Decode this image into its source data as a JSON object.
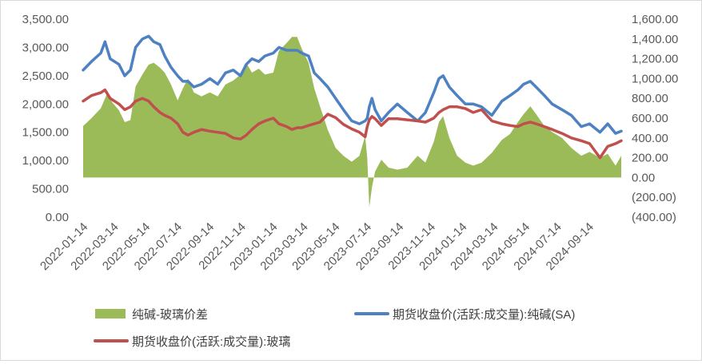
{
  "chart_data": {
    "type": "line",
    "title": "",
    "x_type": "date",
    "x_range": [
      "2022-01-04",
      "2024-11-05"
    ],
    "x_tick_labels": [
      "2022-01-14",
      "2022-03-14",
      "2022-05-14",
      "2022-07-14",
      "2022-09-14",
      "2022-11-14",
      "2023-01-14",
      "2023-03-14",
      "2023-05-14",
      "2023-07-14",
      "2023-09-14",
      "2023-11-14",
      "2024-01-14",
      "2024-03-14",
      "2024-05-14",
      "2024-07-14",
      "2024-09-14"
    ],
    "y_left": {
      "range": [
        0,
        3500
      ],
      "tick_values": [
        0,
        500,
        1000,
        1500,
        2000,
        2500,
        3000,
        3500
      ],
      "tick_labels": [
        "0.00",
        "500.00",
        "1,000.00",
        "1,500.00",
        "2,000.00",
        "2,500.00",
        "3,000.00",
        "3,500.00"
      ]
    },
    "y_right": {
      "range": [
        -400,
        1600
      ],
      "tick_values": [
        -400,
        -200,
        0,
        200,
        400,
        600,
        800,
        1000,
        1200,
        1400,
        1600
      ],
      "tick_labels": [
        "(400.00)",
        "(200.00)",
        "0.00",
        "200.00",
        "400.00",
        "600.00",
        "800.00",
        "1,000.00",
        "1,200.00",
        "1,400.00",
        "1,600.00"
      ]
    },
    "grid": false,
    "legend_position": "bottom",
    "series": [
      {
        "name": "纯碱-玻璃价差",
        "type": "area",
        "axis": "right",
        "color": "#9bbb59",
        "points": [
          [
            "2022-01-04",
            520
          ],
          [
            "2022-01-20",
            600
          ],
          [
            "2022-02-07",
            700
          ],
          [
            "2022-02-20",
            860
          ],
          [
            "2022-03-01",
            760
          ],
          [
            "2022-03-14",
            680
          ],
          [
            "2022-03-25",
            560
          ],
          [
            "2022-04-05",
            580
          ],
          [
            "2022-04-15",
            920
          ],
          [
            "2022-04-28",
            1040
          ],
          [
            "2022-05-10",
            1140
          ],
          [
            "2022-05-20",
            1160
          ],
          [
            "2022-06-01",
            1110
          ],
          [
            "2022-06-10",
            1060
          ],
          [
            "2022-06-22",
            940
          ],
          [
            "2022-07-05",
            780
          ],
          [
            "2022-07-15",
            900
          ],
          [
            "2022-07-25",
            1000
          ],
          [
            "2022-08-05",
            860
          ],
          [
            "2022-08-20",
            820
          ],
          [
            "2022-09-05",
            860
          ],
          [
            "2022-09-20",
            820
          ],
          [
            "2022-10-05",
            940
          ],
          [
            "2022-10-20",
            980
          ],
          [
            "2022-11-03",
            1040
          ],
          [
            "2022-11-14",
            1160
          ],
          [
            "2022-11-25",
            1060
          ],
          [
            "2022-12-08",
            1100
          ],
          [
            "2022-12-20",
            1040
          ],
          [
            "2023-01-05",
            1060
          ],
          [
            "2023-01-16",
            1280
          ],
          [
            "2023-01-31",
            1360
          ],
          [
            "2023-02-10",
            1420
          ],
          [
            "2023-02-20",
            1420
          ],
          [
            "2023-03-01",
            1300
          ],
          [
            "2023-03-14",
            1160
          ],
          [
            "2023-03-25",
            900
          ],
          [
            "2023-04-05",
            720
          ],
          [
            "2023-04-20",
            480
          ],
          [
            "2023-05-05",
            300
          ],
          [
            "2023-05-20",
            220
          ],
          [
            "2023-06-05",
            160
          ],
          [
            "2023-06-20",
            220
          ],
          [
            "2023-07-01",
            420
          ],
          [
            "2023-07-05",
            200
          ],
          [
            "2023-07-09",
            -300
          ],
          [
            "2023-07-14",
            -100
          ],
          [
            "2023-07-20",
            60
          ],
          [
            "2023-08-01",
            180
          ],
          [
            "2023-08-15",
            100
          ],
          [
            "2023-09-01",
            80
          ],
          [
            "2023-09-20",
            100
          ],
          [
            "2023-10-10",
            220
          ],
          [
            "2023-10-25",
            150
          ],
          [
            "2023-11-10",
            360
          ],
          [
            "2023-11-20",
            560
          ],
          [
            "2023-11-28",
            620
          ],
          [
            "2023-12-10",
            400
          ],
          [
            "2023-12-25",
            220
          ],
          [
            "2024-01-10",
            150
          ],
          [
            "2024-01-25",
            120
          ],
          [
            "2024-02-10",
            150
          ],
          [
            "2024-03-01",
            250
          ],
          [
            "2024-03-20",
            380
          ],
          [
            "2024-04-05",
            440
          ],
          [
            "2024-04-20",
            560
          ],
          [
            "2024-05-01",
            640
          ],
          [
            "2024-05-14",
            720
          ],
          [
            "2024-05-25",
            640
          ],
          [
            "2024-06-10",
            520
          ],
          [
            "2024-06-25",
            460
          ],
          [
            "2024-07-14",
            400
          ],
          [
            "2024-08-01",
            300
          ],
          [
            "2024-08-20",
            220
          ],
          [
            "2024-09-05",
            260
          ],
          [
            "2024-09-25",
            200
          ],
          [
            "2024-10-10",
            240
          ],
          [
            "2024-10-25",
            120
          ],
          [
            "2024-11-05",
            220
          ]
        ]
      },
      {
        "name": "期货收盘价(活跃:成交量):纯碱(SA)",
        "type": "line",
        "axis": "left",
        "color": "#4e81c1",
        "points": [
          [
            "2022-01-04",
            2600
          ],
          [
            "2022-01-20",
            2750
          ],
          [
            "2022-02-07",
            2900
          ],
          [
            "2022-02-15",
            3100
          ],
          [
            "2022-02-25",
            2800
          ],
          [
            "2022-03-14",
            2700
          ],
          [
            "2022-03-25",
            2500
          ],
          [
            "2022-04-05",
            2600
          ],
          [
            "2022-04-15",
            3000
          ],
          [
            "2022-04-28",
            3150
          ],
          [
            "2022-05-10",
            3200
          ],
          [
            "2022-05-20",
            3100
          ],
          [
            "2022-06-01",
            3050
          ],
          [
            "2022-06-10",
            2850
          ],
          [
            "2022-06-22",
            2650
          ],
          [
            "2022-07-05",
            2500
          ],
          [
            "2022-07-15",
            2400
          ],
          [
            "2022-07-25",
            2400
          ],
          [
            "2022-08-05",
            2300
          ],
          [
            "2022-08-20",
            2350
          ],
          [
            "2022-09-05",
            2450
          ],
          [
            "2022-09-20",
            2350
          ],
          [
            "2022-10-05",
            2550
          ],
          [
            "2022-10-20",
            2600
          ],
          [
            "2022-11-03",
            2500
          ],
          [
            "2022-11-14",
            2700
          ],
          [
            "2022-11-25",
            2800
          ],
          [
            "2022-12-08",
            2750
          ],
          [
            "2022-12-20",
            2850
          ],
          [
            "2023-01-05",
            2900
          ],
          [
            "2023-01-16",
            3000
          ],
          [
            "2023-01-31",
            2950
          ],
          [
            "2023-02-10",
            2950
          ],
          [
            "2023-02-20",
            2950
          ],
          [
            "2023-03-01",
            2900
          ],
          [
            "2023-03-14",
            2850
          ],
          [
            "2023-03-25",
            2550
          ],
          [
            "2023-04-05",
            2450
          ],
          [
            "2023-04-20",
            2300
          ],
          [
            "2023-05-05",
            2100
          ],
          [
            "2023-05-20",
            1900
          ],
          [
            "2023-06-05",
            1700
          ],
          [
            "2023-06-20",
            1650
          ],
          [
            "2023-07-01",
            1700
          ],
          [
            "2023-07-05",
            1750
          ],
          [
            "2023-07-09",
            1950
          ],
          [
            "2023-07-14",
            2100
          ],
          [
            "2023-07-20",
            1900
          ],
          [
            "2023-08-01",
            1700
          ],
          [
            "2023-08-15",
            1850
          ],
          [
            "2023-09-01",
            2000
          ],
          [
            "2023-09-20",
            1850
          ],
          [
            "2023-10-10",
            1700
          ],
          [
            "2023-10-25",
            1850
          ],
          [
            "2023-11-10",
            2200
          ],
          [
            "2023-11-20",
            2450
          ],
          [
            "2023-11-28",
            2500
          ],
          [
            "2023-12-10",
            2300
          ],
          [
            "2023-12-25",
            2150
          ],
          [
            "2024-01-10",
            2000
          ],
          [
            "2024-01-25",
            2000
          ],
          [
            "2024-02-10",
            1950
          ],
          [
            "2024-03-01",
            1800
          ],
          [
            "2024-03-20",
            2050
          ],
          [
            "2024-04-05",
            2150
          ],
          [
            "2024-04-20",
            2250
          ],
          [
            "2024-05-01",
            2350
          ],
          [
            "2024-05-14",
            2400
          ],
          [
            "2024-05-25",
            2300
          ],
          [
            "2024-06-10",
            2150
          ],
          [
            "2024-06-25",
            2000
          ],
          [
            "2024-07-14",
            1900
          ],
          [
            "2024-08-01",
            1800
          ],
          [
            "2024-08-20",
            1600
          ],
          [
            "2024-09-05",
            1650
          ],
          [
            "2024-09-25",
            1500
          ],
          [
            "2024-10-10",
            1650
          ],
          [
            "2024-10-25",
            1480
          ],
          [
            "2024-11-05",
            1520
          ]
        ]
      },
      {
        "name": "期货收盘价(活跃:成交量):玻璃",
        "type": "line",
        "axis": "left",
        "color": "#c0504d",
        "points": [
          [
            "2022-01-04",
            2050
          ],
          [
            "2022-01-20",
            2150
          ],
          [
            "2022-02-07",
            2200
          ],
          [
            "2022-02-15",
            2250
          ],
          [
            "2022-02-25",
            2100
          ],
          [
            "2022-03-14",
            2000
          ],
          [
            "2022-03-25",
            1900
          ],
          [
            "2022-04-05",
            1950
          ],
          [
            "2022-04-15",
            2050
          ],
          [
            "2022-04-28",
            2100
          ],
          [
            "2022-05-10",
            2050
          ],
          [
            "2022-05-20",
            1950
          ],
          [
            "2022-06-01",
            1850
          ],
          [
            "2022-06-10",
            1800
          ],
          [
            "2022-06-22",
            1750
          ],
          [
            "2022-07-05",
            1650
          ],
          [
            "2022-07-15",
            1500
          ],
          [
            "2022-07-25",
            1450
          ],
          [
            "2022-08-05",
            1500
          ],
          [
            "2022-08-20",
            1550
          ],
          [
            "2022-09-05",
            1520
          ],
          [
            "2022-09-20",
            1500
          ],
          [
            "2022-10-05",
            1480
          ],
          [
            "2022-10-20",
            1400
          ],
          [
            "2022-11-03",
            1380
          ],
          [
            "2022-11-14",
            1450
          ],
          [
            "2022-11-25",
            1550
          ],
          [
            "2022-12-08",
            1650
          ],
          [
            "2022-12-20",
            1700
          ],
          [
            "2023-01-05",
            1750
          ],
          [
            "2023-01-16",
            1650
          ],
          [
            "2023-01-31",
            1600
          ],
          [
            "2023-02-10",
            1550
          ],
          [
            "2023-02-20",
            1580
          ],
          [
            "2023-03-01",
            1580
          ],
          [
            "2023-03-14",
            1620
          ],
          [
            "2023-03-25",
            1650
          ],
          [
            "2023-04-05",
            1680
          ],
          [
            "2023-04-20",
            1820
          ],
          [
            "2023-05-05",
            1760
          ],
          [
            "2023-05-20",
            1640
          ],
          [
            "2023-06-05",
            1560
          ],
          [
            "2023-06-20",
            1500
          ],
          [
            "2023-07-01",
            1420
          ],
          [
            "2023-07-05",
            1600
          ],
          [
            "2023-07-09",
            1720
          ],
          [
            "2023-07-14",
            1780
          ],
          [
            "2023-07-20",
            1740
          ],
          [
            "2023-08-01",
            1620
          ],
          [
            "2023-08-15",
            1740
          ],
          [
            "2023-09-01",
            1740
          ],
          [
            "2023-09-20",
            1720
          ],
          [
            "2023-10-10",
            1700
          ],
          [
            "2023-10-25",
            1680
          ],
          [
            "2023-11-10",
            1750
          ],
          [
            "2023-11-20",
            1850
          ],
          [
            "2023-11-28",
            1900
          ],
          [
            "2023-12-10",
            1950
          ],
          [
            "2023-12-25",
            1950
          ],
          [
            "2024-01-10",
            1920
          ],
          [
            "2024-01-25",
            1850
          ],
          [
            "2024-02-10",
            1900
          ],
          [
            "2024-03-01",
            1700
          ],
          [
            "2024-03-20",
            1650
          ],
          [
            "2024-04-05",
            1620
          ],
          [
            "2024-04-20",
            1600
          ],
          [
            "2024-05-01",
            1650
          ],
          [
            "2024-05-14",
            1680
          ],
          [
            "2024-05-25",
            1650
          ],
          [
            "2024-06-10",
            1600
          ],
          [
            "2024-06-25",
            1550
          ],
          [
            "2024-07-14",
            1480
          ],
          [
            "2024-08-01",
            1400
          ],
          [
            "2024-08-20",
            1350
          ],
          [
            "2024-09-05",
            1300
          ],
          [
            "2024-09-25",
            1050
          ],
          [
            "2024-10-10",
            1250
          ],
          [
            "2024-10-25",
            1300
          ],
          [
            "2024-11-05",
            1350
          ]
        ]
      }
    ]
  }
}
